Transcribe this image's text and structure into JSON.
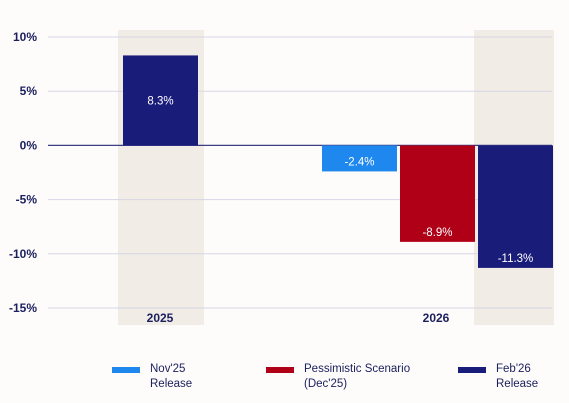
{
  "chart_data": {
    "type": "bar",
    "categories": [
      "2025",
      "2026"
    ],
    "ylim": [
      -15,
      10
    ],
    "yticks": [
      10,
      5,
      0,
      -5,
      -10,
      -15
    ],
    "ytick_labels": [
      "10%",
      "5%",
      "0%",
      "-5%",
      "-10%",
      "-15%"
    ],
    "grid": true,
    "legend_position": "bottom",
    "series": [
      {
        "name": "Nov'25\nRelease",
        "color": "#1e88ee",
        "values": [
          null,
          -2.4
        ],
        "labels": [
          "",
          "-2.4%"
        ]
      },
      {
        "name": "Pessimistic Scenario\n(Dec'25)",
        "color": "#b00018",
        "values": [
          null,
          -8.9
        ],
        "labels": [
          "",
          "-8.9%"
        ]
      },
      {
        "name": "Feb'26\nRelease",
        "color": "#1a1c7a",
        "values": [
          8.3,
          -11.3
        ],
        "labels": [
          "8.3%",
          "-11.3%"
        ]
      }
    ],
    "highlight_color": "#f1ece6"
  }
}
